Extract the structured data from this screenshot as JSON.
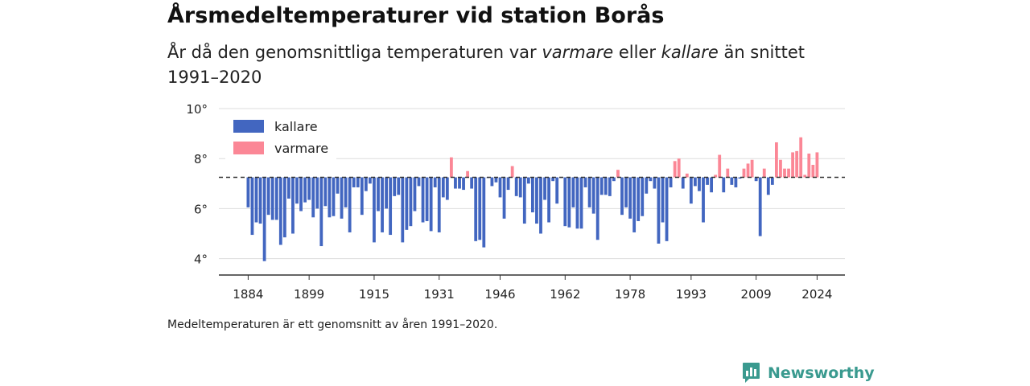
{
  "title": "Årsmedeltemperaturer vid station Borås",
  "subtitle_parts": [
    "År då den genomsnittliga temperaturen var ",
    "varmare",
    " eller ",
    "kallare",
    " än snittet 1991–2020"
  ],
  "footnote": "Medeltemperaturen är ett genomsnitt av åren 1991–2020.",
  "brand": "Newsworthy",
  "colors": {
    "kallare": "#4266c0",
    "varmare": "#fb8796",
    "baseline": "#333333",
    "grid": "#dddddd",
    "brand": "#3a9a8f"
  },
  "chart_data": {
    "type": "bar",
    "baseline": 7.25,
    "baseline_style": "dashed",
    "ylim": [
      3.5,
      10
    ],
    "yticks": [
      4,
      6,
      8,
      10
    ],
    "ytick_labels": [
      "4°",
      "6°",
      "8°",
      "10°"
    ],
    "xticks": [
      1884,
      1899,
      1915,
      1931,
      1946,
      1962,
      1978,
      1993,
      2009,
      2024
    ],
    "grid": "horizontal",
    "legend": {
      "placement": "top-left",
      "entries": [
        {
          "key": "kallare",
          "label": "kallare"
        },
        {
          "key": "varmare",
          "label": "varmare"
        }
      ]
    },
    "x_start": 1884,
    "values": [
      6.05,
      4.95,
      5.45,
      5.4,
      3.9,
      5.75,
      5.55,
      5.55,
      4.55,
      4.85,
      6.4,
      5.0,
      6.2,
      5.9,
      6.25,
      6.35,
      5.65,
      6.0,
      4.5,
      6.1,
      5.65,
      5.7,
      6.6,
      5.6,
      6.05,
      5.05,
      6.85,
      6.85,
      5.75,
      6.7,
      7.0,
      4.65,
      5.9,
      5.05,
      6.0,
      4.95,
      6.5,
      6.55,
      4.65,
      5.15,
      5.3,
      5.9,
      6.9,
      5.45,
      5.5,
      5.1,
      6.85,
      5.05,
      6.45,
      6.35,
      8.05,
      6.8,
      6.8,
      6.75,
      7.5,
      6.8,
      4.7,
      4.75,
      4.45,
      7.25,
      6.9,
      7.05,
      6.45,
      5.6,
      6.75,
      7.7,
      6.5,
      6.45,
      5.4,
      7.0,
      5.85,
      5.4,
      5.0,
      6.35,
      5.45,
      7.1,
      6.2,
      7.25,
      5.3,
      5.25,
      6.05,
      5.2,
      5.2,
      6.85,
      6.05,
      5.8,
      4.75,
      6.55,
      6.55,
      6.5,
      7.1,
      7.55,
      5.75,
      6.05,
      5.6,
      5.05,
      5.5,
      5.7,
      6.6,
      7.1,
      6.8,
      4.6,
      5.45,
      4.7,
      6.85,
      7.9,
      8.0,
      6.8,
      7.4,
      6.2,
      6.9,
      6.7,
      5.45,
      6.95,
      6.65,
      7.35,
      8.15,
      6.65,
      7.6,
      6.95,
      6.85,
      7.2,
      7.6,
      7.8,
      7.95,
      7.1,
      4.9,
      7.6,
      6.55,
      6.95,
      8.65,
      7.95,
      7.6,
      7.6,
      8.25,
      8.3,
      8.85,
      7.35,
      8.2,
      7.75,
      8.25
    ]
  }
}
